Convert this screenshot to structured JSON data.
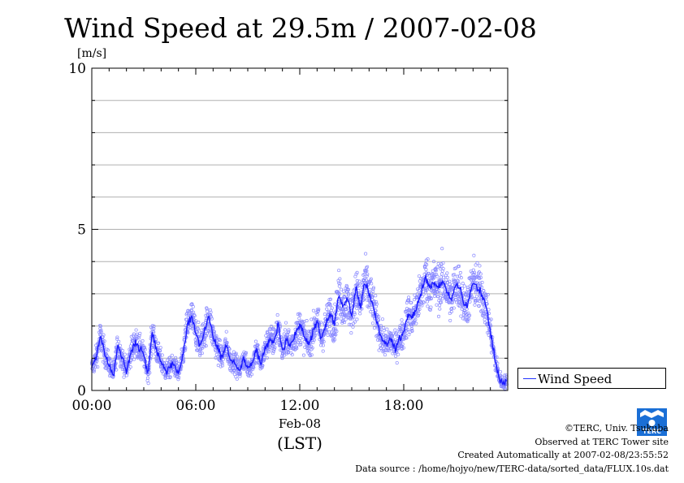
{
  "chart_data": {
    "type": "scatter",
    "title": "Wind Speed at 29.5m / 2007-02-08",
    "ylabel": "[m/s]",
    "xlabel_date": "Feb-08",
    "xlabel_unit": "(LST)",
    "ylim": [
      0,
      10
    ],
    "yticks": [
      {
        "value": 0,
        "label": "0"
      },
      {
        "value": 5,
        "label": "5"
      },
      {
        "value": 10,
        "label": "10"
      }
    ],
    "xlim_hours": [
      0,
      24
    ],
    "xticks": [
      {
        "value": 0,
        "label": "00:00"
      },
      {
        "value": 6,
        "label": "06:00"
      },
      {
        "value": 12,
        "label": "12:00"
      },
      {
        "value": 18,
        "label": "18:00"
      }
    ],
    "grid": true,
    "legend_position": "right",
    "series": [
      {
        "name": "Wind Speed",
        "color": "#1a1aff",
        "scatter_color": "#8a8aff",
        "x_hours": [
          0.0,
          0.25,
          0.5,
          0.75,
          1.0,
          1.25,
          1.5,
          1.75,
          2.0,
          2.25,
          2.5,
          2.75,
          3.0,
          3.25,
          3.5,
          3.75,
          4.0,
          4.25,
          4.5,
          4.75,
          5.0,
          5.25,
          5.5,
          5.75,
          6.0,
          6.25,
          6.5,
          6.75,
          7.0,
          7.25,
          7.5,
          7.75,
          8.0,
          8.25,
          8.5,
          8.75,
          9.0,
          9.25,
          9.5,
          9.75,
          10.0,
          10.25,
          10.5,
          10.75,
          11.0,
          11.25,
          11.5,
          11.75,
          12.0,
          12.25,
          12.5,
          12.75,
          13.0,
          13.25,
          13.5,
          13.75,
          14.0,
          14.25,
          14.5,
          14.75,
          15.0,
          15.25,
          15.5,
          15.75,
          16.0,
          16.25,
          16.5,
          16.75,
          17.0,
          17.25,
          17.5,
          17.75,
          18.0,
          18.25,
          18.5,
          18.75,
          19.0,
          19.25,
          19.5,
          19.75,
          20.0,
          20.25,
          20.5,
          20.75,
          21.0,
          21.25,
          21.5,
          21.75,
          22.0,
          22.25,
          22.5,
          22.75,
          23.0,
          23.25,
          23.5,
          23.75,
          24.0
        ],
        "y": [
          0.7,
          1.0,
          1.7,
          1.1,
          0.8,
          0.5,
          1.4,
          1.0,
          0.6,
          1.2,
          1.5,
          1.3,
          1.1,
          0.5,
          1.8,
          1.2,
          0.9,
          0.6,
          0.7,
          0.8,
          0.5,
          1.0,
          2.0,
          2.3,
          1.8,
          1.4,
          1.8,
          2.3,
          1.7,
          1.3,
          1.0,
          1.4,
          0.9,
          0.9,
          0.6,
          1.0,
          0.7,
          0.8,
          1.3,
          0.8,
          1.3,
          1.6,
          1.5,
          2.0,
          1.2,
          1.6,
          1.4,
          1.7,
          2.0,
          1.7,
          1.4,
          1.8,
          2.2,
          1.6,
          2.0,
          2.4,
          2.0,
          3.0,
          2.6,
          2.8,
          2.3,
          3.2,
          2.6,
          3.4,
          3.0,
          2.6,
          2.0,
          1.6,
          1.4,
          1.6,
          1.3,
          1.6,
          1.8,
          2.4,
          2.2,
          2.6,
          3.0,
          3.5,
          3.2,
          3.3,
          3.2,
          3.4,
          3.1,
          2.8,
          3.3,
          3.2,
          2.6,
          2.8,
          3.4,
          3.2,
          3.0,
          2.6,
          1.8,
          1.0,
          0.4,
          0.2,
          0.3
        ]
      }
    ]
  },
  "legend": {
    "label": "Wind Speed"
  },
  "footer": {
    "copyright": "©TERC, Univ. Tsukuba",
    "site": "Observed at TERC Tower site",
    "created": "Created Automatically at 2007-02-08/23:55:52",
    "source": "Data source : /home/hojyo/new/TERC-data/sorted_data/FLUX.10s.dat"
  },
  "logo": {
    "text": "TERC",
    "color": "#1a6fd6"
  }
}
